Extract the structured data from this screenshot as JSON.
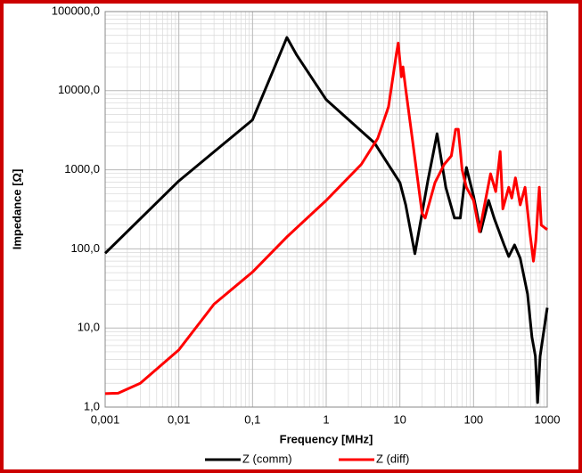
{
  "chart_data": {
    "type": "line",
    "xlabel": "Frequency  [MHz]",
    "ylabel": "Impedance [Ω]",
    "xscale": "log",
    "yscale": "log",
    "grid": true,
    "legend": "bottom",
    "xlim": [
      0.001,
      1000
    ],
    "ylim": [
      1,
      100000
    ],
    "xticks": [
      {
        "value": 0.001,
        "label": "0,001"
      },
      {
        "value": 0.01,
        "label": "0,01"
      },
      {
        "value": 0.1,
        "label": "0,1"
      },
      1,
      10,
      100,
      1000
    ],
    "yticks": [
      {
        "value": 1,
        "label": "1,0"
      },
      {
        "value": 10,
        "label": "10,0"
      },
      {
        "value": 100,
        "label": "100,0"
      },
      {
        "value": 1000,
        "label": "1000,0"
      },
      {
        "value": 10000,
        "label": "10000,0"
      },
      {
        "value": 100000,
        "label": "100000,0"
      }
    ],
    "series": [
      {
        "name": "Z  (comm)",
        "color": "#000000",
        "x": [
          0.001,
          0.01,
          0.1,
          0.2,
          0.293,
          0.4,
          1,
          4.5,
          10,
          12,
          16,
          24,
          32,
          42,
          55,
          66,
          80,
          100,
          125,
          160,
          190,
          260,
          300,
          360,
          430,
          540,
          620,
          690,
          740,
          800,
          1000
        ],
        "values": [
          88,
          724,
          4270,
          20000,
          47000,
          28000,
          7700,
          2200,
          690,
          360,
          87,
          730,
          2850,
          600,
          245,
          245,
          1070,
          465,
          165,
          410,
          245,
          112,
          80,
          112,
          76,
          27,
          7.7,
          4.4,
          1.14,
          4.4,
          18
        ]
      },
      {
        "name": "Z (diff)",
        "color": "#ff0000",
        "x": [
          0.001,
          0.0015,
          0.003,
          0.01,
          0.03,
          0.1,
          0.3,
          1,
          3,
          5,
          7,
          9,
          9.5,
          10.5,
          11,
          12,
          15,
          20,
          22,
          30,
          40,
          50,
          57,
          62,
          70,
          80,
          100,
          120,
          170,
          200,
          230,
          250,
          300,
          330,
          370,
          430,
          500,
          580,
          650,
          700,
          780,
          830,
          1000
        ],
        "values": [
          1.48,
          1.5,
          2.0,
          5.3,
          20,
          51,
          145,
          410,
          1170,
          2500,
          6250,
          30000,
          40000,
          15000,
          20000,
          10500,
          2200,
          280,
          245,
          690,
          1170,
          1500,
          3250,
          3250,
          1000,
          600,
          410,
          165,
          890,
          530,
          1700,
          320,
          600,
          440,
          790,
          360,
          600,
          165,
          70,
          127,
          600,
          200,
          175
        ]
      }
    ]
  }
}
